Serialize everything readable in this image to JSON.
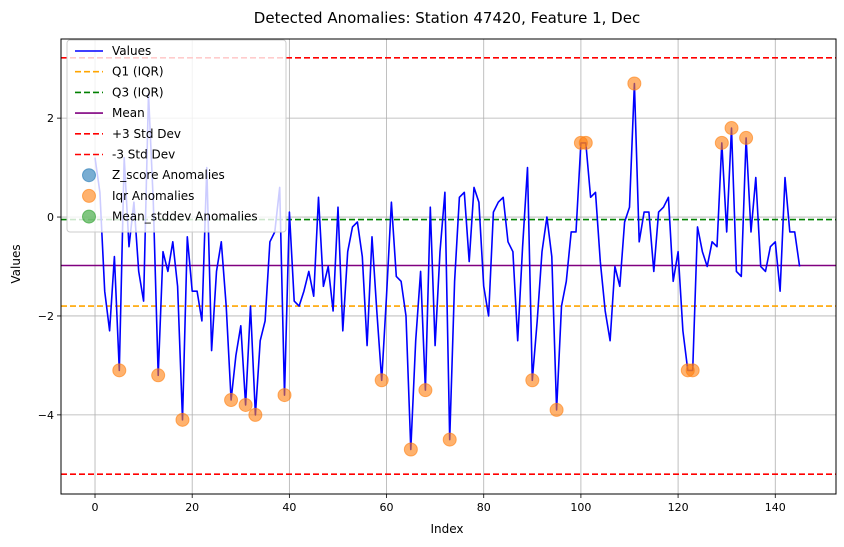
{
  "chart_data": {
    "type": "line",
    "title": "Detected Anomalies: Station 47420, Feature 1, Dec",
    "xlabel": "Index",
    "ylabel": "Values",
    "xlim": [
      -7,
      152.5
    ],
    "ylim": [
      -5.6,
      3.6
    ],
    "xticks": [
      0,
      20,
      40,
      60,
      80,
      100,
      120,
      140
    ],
    "yticks": [
      -4,
      -2,
      0,
      2
    ],
    "grid": true,
    "legend_position": "upper-left",
    "series_values": {
      "name": "Values",
      "color": "#0000ff",
      "x": [
        0,
        1,
        2,
        3,
        4,
        5,
        6,
        7,
        8,
        9,
        10,
        11,
        12,
        13,
        14,
        15,
        16,
        17,
        18,
        19,
        20,
        21,
        22,
        23,
        24,
        25,
        26,
        27,
        28,
        29,
        30,
        31,
        32,
        33,
        34,
        35,
        36,
        37,
        38,
        39,
        40,
        41,
        42,
        43,
        44,
        45,
        46,
        47,
        48,
        49,
        50,
        51,
        52,
        53,
        54,
        55,
        56,
        57,
        58,
        59,
        60,
        61,
        62,
        63,
        64,
        65,
        66,
        67,
        68,
        69,
        70,
        71,
        72,
        73,
        74,
        75,
        76,
        77,
        78,
        79,
        80,
        81,
        82,
        83,
        84,
        85,
        86,
        87,
        88,
        89,
        90,
        91,
        92,
        93,
        94,
        95,
        96,
        97,
        98,
        99,
        100,
        101,
        102,
        103,
        104,
        105,
        106,
        107,
        108,
        109,
        110,
        111,
        112,
        113,
        114,
        115,
        116,
        117,
        118,
        119,
        120,
        121,
        122,
        123,
        124,
        125,
        126,
        127,
        128,
        129,
        130,
        131,
        132,
        133,
        134,
        135,
        136,
        137,
        138,
        139,
        140,
        141,
        142,
        143,
        144,
        145
      ],
      "y": [
        1.2,
        0.5,
        -1.5,
        -2.3,
        -0.8,
        -3.1,
        1.2,
        -0.6,
        0.3,
        -1.1,
        -1.7,
        2.5,
        0.3,
        -3.2,
        -0.7,
        -1.1,
        -0.5,
        -1.4,
        -4.1,
        -0.4,
        -1.5,
        -1.5,
        -2.1,
        1.0,
        -2.7,
        -1.1,
        -0.5,
        -1.8,
        -3.7,
        -2.8,
        -2.2,
        -3.8,
        -1.8,
        -4.0,
        -2.5,
        -2.1,
        -0.5,
        -0.3,
        0.6,
        -3.6,
        0.1,
        -1.7,
        -1.8,
        -1.5,
        -1.1,
        -1.6,
        0.4,
        -1.4,
        -1.0,
        -1.9,
        0.2,
        -2.3,
        -0.7,
        -0.2,
        -0.1,
        -0.8,
        -2.6,
        -0.4,
        -1.9,
        -3.3,
        -1.6,
        0.3,
        -1.2,
        -1.3,
        -2.0,
        -4.7,
        -2.5,
        -1.1,
        -3.5,
        0.2,
        -2.6,
        -0.7,
        0.5,
        -4.5,
        -1.3,
        0.4,
        0.5,
        -0.9,
        0.6,
        0.3,
        -1.4,
        -2.0,
        0.1,
        0.3,
        0.4,
        -0.5,
        -0.7,
        -2.5,
        -0.6,
        1.0,
        -3.3,
        -2.1,
        -0.7,
        0.0,
        -0.8,
        -3.9,
        -1.8,
        -1.3,
        -0.3,
        -0.3,
        1.5,
        1.5,
        0.4,
        0.5,
        -0.9,
        -1.9,
        -2.5,
        -1.0,
        -1.4,
        -0.1,
        0.2,
        2.7,
        -0.5,
        0.1,
        0.1,
        -1.1,
        0.1,
        0.2,
        0.4,
        -1.3,
        -0.7,
        -2.3,
        -3.1,
        -3.1,
        -0.2,
        -0.7,
        -1.0,
        -0.5,
        -0.6,
        1.5,
        -0.3,
        1.8,
        -1.1,
        -1.2,
        1.6,
        -0.3,
        0.8,
        -1.0,
        -1.1,
        -0.6,
        -0.5,
        -1.5,
        0.8,
        -0.3,
        -0.3,
        -1.0
      ]
    },
    "reference_lines": [
      {
        "name": "Q1 (IQR)",
        "value": -1.8,
        "color": "#ffa500",
        "dash": "dashed"
      },
      {
        "name": "Q3 (IQR)",
        "value": -0.05,
        "color": "#008000",
        "dash": "dashed"
      },
      {
        "name": "Mean",
        "value": -0.98,
        "color": "#800080",
        "dash": "solid"
      },
      {
        "name": "+3 Std Dev",
        "value": 3.22,
        "color": "#ff0000",
        "dash": "dashed"
      },
      {
        "name": "-3 Std Dev",
        "value": -5.2,
        "color": "#ff0000",
        "dash": "dashed"
      }
    ],
    "anomaly_series": [
      {
        "name": "Z_score Anomalies",
        "color": "#1f77b4",
        "x": [],
        "y": []
      },
      {
        "name": "Iqr Anomalies",
        "color": "#ff7f0e",
        "x": [
          5,
          13,
          18,
          28,
          31,
          33,
          39,
          59,
          65,
          68,
          73,
          90,
          95,
          100,
          101,
          111,
          122,
          123,
          129,
          131,
          134
        ],
        "y": [
          -3.1,
          -3.2,
          -4.1,
          -3.7,
          -3.8,
          -4.0,
          -3.6,
          -3.3,
          -4.7,
          -3.5,
          -4.5,
          -3.3,
          -3.9,
          1.5,
          1.5,
          2.7,
          -3.1,
          -3.1,
          1.5,
          1.8,
          1.6
        ]
      },
      {
        "name": "Mean_stddev Anomalies",
        "color": "#2ca02c",
        "x": [],
        "y": []
      }
    ],
    "legend": [
      {
        "label": "Values",
        "kind": "line",
        "color": "#0000ff",
        "dash": "solid"
      },
      {
        "label": "Q1 (IQR)",
        "kind": "line",
        "color": "#ffa500",
        "dash": "dashed"
      },
      {
        "label": "Q3 (IQR)",
        "kind": "line",
        "color": "#008000",
        "dash": "dashed"
      },
      {
        "label": "Mean",
        "kind": "line",
        "color": "#800080",
        "dash": "solid"
      },
      {
        "label": "+3 Std Dev",
        "kind": "line",
        "color": "#ff0000",
        "dash": "dashed"
      },
      {
        "label": "-3 Std Dev",
        "kind": "line",
        "color": "#ff0000",
        "dash": "dashed"
      },
      {
        "label": "Z_score Anomalies",
        "kind": "marker",
        "color": "#1f77b4"
      },
      {
        "label": "Iqr Anomalies",
        "kind": "marker",
        "color": "#ff7f0e"
      },
      {
        "label": "Mean_stddev Anomalies",
        "kind": "marker",
        "color": "#2ca02c"
      }
    ]
  }
}
